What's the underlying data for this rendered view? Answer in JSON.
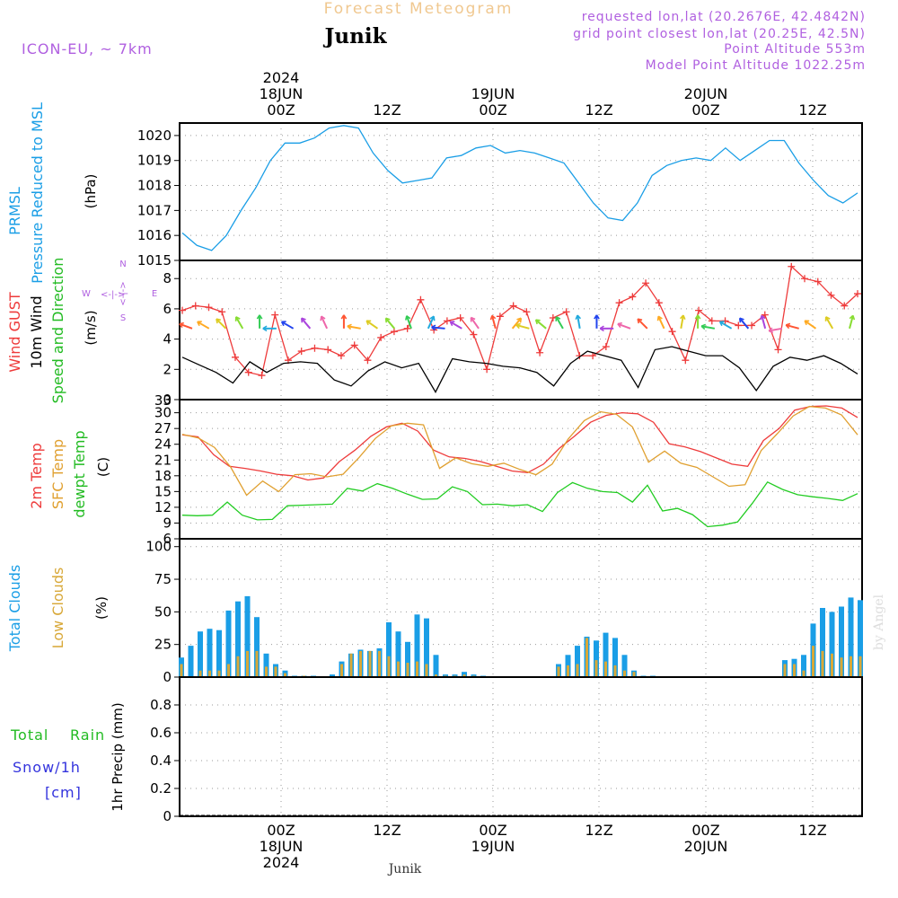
{
  "header": {
    "title": "Forecast Meteogram",
    "location": "Junik",
    "model": "ICON-EU, ~ 7km",
    "requested": "requested lon,lat (20.2676E, 42.4842N)",
    "grid": "grid point closest lon,lat (20.25E, 42.5N)",
    "point_alt": "Point Altitude 553m",
    "model_alt": "Model Point Altitude 1022.25m",
    "footer": "Junik",
    "watermark": "by Angel"
  },
  "colors": {
    "pressure": "#1a9ee6",
    "gust": "#ee3b3b",
    "wind": "#000000",
    "temp2m": "#ee3b3b",
    "sfc": "#e0a030",
    "dew": "#22cc22",
    "total_clouds": "#1a9ee6",
    "low_clouds": "#d8a838",
    "rain": "#22bb22",
    "snow": "#3333dd",
    "meta": "#b060e0",
    "title": "#f0c890",
    "watermark": "#dddddd"
  },
  "chart_data": [
    {
      "type": "line",
      "panel": "pressure",
      "ylabel_1": "PRMSL",
      "ylabel_2": "Pressure Reduced to MSL",
      "unit": "(hPa)",
      "ylim": [
        1015,
        1020.5
      ],
      "yticks": [
        "1015",
        "1016",
        "1017",
        "1018",
        "1019",
        "1020"
      ],
      "series": [
        {
          "name": "PRMSL",
          "values": [
            1016.1,
            1015.6,
            1015.4,
            1016.0,
            1017.0,
            1017.9,
            1019.0,
            1019.7,
            1019.7,
            1019.9,
            1020.3,
            1020.4,
            1020.3,
            1019.3,
            1018.6,
            1018.1,
            1018.2,
            1018.3,
            1019.1,
            1019.2,
            1019.5,
            1019.6,
            1019.3,
            1019.4,
            1019.3,
            1019.1,
            1018.9,
            1018.1,
            1017.3,
            1016.7,
            1016.6,
            1017.3,
            1018.4,
            1018.8,
            1019.0,
            1019.1,
            1019.0,
            1019.5,
            1019.0,
            1019.4,
            1019.8,
            1019.8,
            1018.9,
            1018.2,
            1017.6,
            1017.3,
            1017.7
          ]
        }
      ]
    },
    {
      "type": "line",
      "panel": "wind",
      "ylabel_1": "Wind GUST",
      "ylabel_2": "10m Wind",
      "ylabel_3": "Speed and Direction",
      "unit": "(m/s)",
      "compass": {
        "north": "N",
        "south": "S",
        "west": "W",
        "east": "E"
      },
      "ylim": [
        0,
        9.2
      ],
      "yticks": [
        "0",
        "2",
        "4",
        "6",
        "8"
      ],
      "series": [
        {
          "name": "Wind GUST",
          "values": [
            5.9,
            6.2,
            6.1,
            5.8,
            2.8,
            1.8,
            1.6,
            5.6,
            2.6,
            3.2,
            3.4,
            3.3,
            2.9,
            3.6,
            2.6,
            4.1,
            4.5,
            4.7,
            6.6,
            4.6,
            5.2,
            5.4,
            4.3,
            2.0,
            5.5,
            6.2,
            5.8,
            3.1,
            5.4,
            5.8,
            2.9,
            2.9,
            3.5,
            6.4,
            6.8,
            7.7,
            6.4,
            4.5,
            2.6,
            5.9,
            5.2,
            5.2,
            4.9,
            4.9,
            5.6,
            3.3,
            8.8,
            8.0,
            7.8,
            6.9,
            6.2,
            7.0
          ]
        },
        {
          "name": "10m Wind",
          "values": [
            2.8,
            2.3,
            1.8,
            1.1,
            2.5,
            1.8,
            2.4,
            2.5,
            2.4,
            1.3,
            0.9,
            1.9,
            2.5,
            2.1,
            2.4,
            0.5,
            2.7,
            2.5,
            2.4,
            2.2,
            2.1,
            1.8,
            0.9,
            2.4,
            3.2,
            2.9,
            2.6,
            0.8,
            3.3,
            3.5,
            3.2,
            2.9,
            2.9,
            2.1,
            0.6,
            2.2,
            2.8,
            2.6,
            2.9,
            2.4,
            1.7
          ]
        }
      ],
      "wind_directions_deg": [
        290,
        300,
        315,
        330,
        0,
        270,
        300,
        320,
        335,
        0,
        280,
        305,
        320,
        340,
        25,
        275,
        300,
        325,
        345,
        40,
        285,
        310,
        330,
        350,
        0,
        270,
        290,
        315,
        335,
        10,
        0,
        280,
        300,
        320,
        345,
        260,
        285,
        305,
        330,
        15
      ]
    },
    {
      "type": "line",
      "panel": "temperature",
      "ylabel_1": "2m Temp",
      "ylabel_2": "SFC Temp",
      "ylabel_3": "dewpt Temp",
      "unit": "(C)",
      "ylim": [
        6,
        32.5
      ],
      "yticks": [
        "6",
        "9",
        "12",
        "15",
        "18",
        "21",
        "24",
        "27",
        "30"
      ],
      "top_tick": "33",
      "series": [
        {
          "name": "2m Temp",
          "values": [
            25.8,
            25.4,
            22.0,
            19.8,
            19.4,
            18.9,
            18.3,
            18.0,
            17.2,
            17.6,
            20.7,
            22.9,
            25.5,
            27.3,
            28.0,
            26.5,
            22.9,
            21.6,
            21.3,
            20.7,
            19.8,
            18.9,
            18.6,
            20.2,
            23.2,
            25.6,
            28.2,
            29.5,
            30.0,
            29.8,
            28.2,
            24.1,
            23.5,
            22.6,
            21.4,
            20.2,
            19.8,
            24.7,
            27.0,
            30.5,
            31.2,
            31.3,
            30.9,
            29.1
          ]
        },
        {
          "name": "SFC Temp",
          "values": [
            25.9,
            25.2,
            23.4,
            19.7,
            14.3,
            17.0,
            15.0,
            18.2,
            18.4,
            17.8,
            18.3,
            21.5,
            25.1,
            27.5,
            28.0,
            27.7,
            19.4,
            21.4,
            20.3,
            19.8,
            20.4,
            19.2,
            18.2,
            20.2,
            25.0,
            28.5,
            30.2,
            29.7,
            27.3,
            20.6,
            22.7,
            20.4,
            19.6,
            17.8,
            16.0,
            16.3,
            22.8,
            26.0,
            29.4,
            31.2,
            30.9,
            29.6,
            25.8
          ]
        },
        {
          "name": "dewpt Temp",
          "values": [
            10.5,
            10.4,
            10.5,
            13.0,
            10.5,
            9.6,
            9.7,
            12.3,
            12.4,
            12.5,
            12.6,
            15.6,
            15.1,
            16.5,
            15.6,
            14.5,
            13.5,
            13.6,
            15.9,
            15.0,
            12.5,
            12.6,
            12.3,
            12.5,
            11.2,
            14.8,
            16.7,
            15.6,
            15.0,
            14.8,
            13.0,
            16.2,
            11.3,
            11.8,
            10.6,
            8.3,
            8.6,
            9.2,
            12.8,
            16.8,
            15.4,
            14.4,
            14.0,
            13.7,
            13.3,
            14.6
          ]
        }
      ]
    },
    {
      "type": "bar",
      "panel": "clouds",
      "ylabel_1": "Total Clouds",
      "ylabel_2": "Low Clouds",
      "unit": "(%)",
      "ylim": [
        0,
        106
      ],
      "yticks": [
        "0",
        "25",
        "50",
        "75",
        "100"
      ],
      "series": [
        {
          "name": "Total Clouds",
          "values": [
            15,
            24,
            35,
            37,
            36,
            51,
            58,
            62,
            46,
            18,
            10,
            5,
            1,
            1,
            1,
            0,
            2,
            12,
            18,
            21,
            20,
            22,
            42,
            35,
            27,
            48,
            45,
            17,
            2,
            2,
            4,
            2,
            1,
            0,
            0,
            0,
            0,
            0,
            0,
            0,
            10,
            17,
            24,
            31,
            28,
            34,
            30,
            17,
            5,
            1,
            1,
            0,
            0,
            0,
            0,
            0,
            0,
            0,
            0,
            0,
            0,
            0,
            0,
            0,
            13,
            14,
            17,
            41,
            53,
            50,
            54,
            61,
            59
          ]
        },
        {
          "name": "Low Clouds",
          "values": [
            10,
            0,
            5,
            5,
            5,
            10,
            16,
            20,
            20,
            8,
            8,
            3,
            0,
            1,
            0,
            0,
            0,
            10,
            18,
            20,
            20,
            20,
            16,
            12,
            11,
            12,
            10,
            2,
            1,
            1,
            2,
            1,
            0,
            0,
            0,
            0,
            0,
            0,
            0,
            0,
            8,
            9,
            10,
            30,
            13,
            12,
            9,
            5,
            4,
            0,
            0,
            0,
            0,
            0,
            0,
            0,
            0,
            0,
            0,
            0,
            0,
            0,
            0,
            0,
            10,
            10,
            5,
            24,
            20,
            18,
            15,
            16,
            16
          ]
        }
      ]
    },
    {
      "type": "bar",
      "panel": "precip",
      "ylabel_1": "Total",
      "ylabel_2": "Rain",
      "ylabel_3": "Snow/1h",
      "ylabel_4": "[cm]",
      "axis_label": "1hr Precip (mm)",
      "ylim": [
        0,
        1
      ],
      "yticks": [
        "0",
        "0.2",
        "0.4",
        "0.6",
        "0.8"
      ],
      "series": [
        {
          "name": "Total Rain",
          "values": []
        }
      ]
    }
  ],
  "time_axis": {
    "top_labels": [
      {
        "time": "00Z",
        "date": "18JUN",
        "year": "2024"
      },
      {
        "time": "12Z"
      },
      {
        "time": "00Z",
        "date": "19JUN"
      },
      {
        "time": "12Z"
      },
      {
        "time": "00Z",
        "date": "20JUN"
      },
      {
        "time": "12Z"
      }
    ],
    "bottom_labels": [
      {
        "time": "00Z",
        "date": "18JUN",
        "year": "2024"
      },
      {
        "time": "12Z"
      },
      {
        "time": "00Z",
        "date": "19JUN"
      },
      {
        "time": "12Z"
      },
      {
        "time": "00Z",
        "date": "20JUN"
      },
      {
        "time": "12Z"
      }
    ]
  }
}
